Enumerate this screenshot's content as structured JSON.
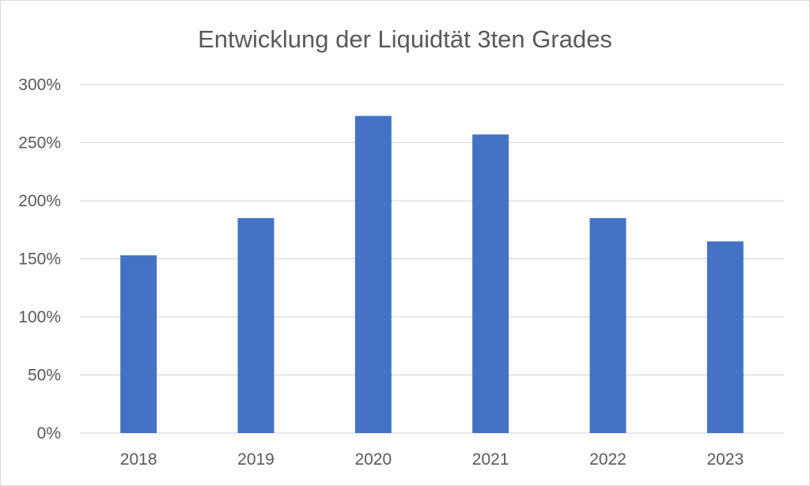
{
  "chart_data": {
    "type": "bar",
    "title": "Entwicklung der Liquidtät 3ten Grades",
    "xlabel": "",
    "ylabel": "",
    "categories": [
      "2018",
      "2019",
      "2020",
      "2021",
      "2022",
      "2023"
    ],
    "values": [
      153,
      185,
      273,
      257,
      185,
      165
    ],
    "value_unit": "%",
    "ylim": [
      0,
      300
    ],
    "yticks": [
      0,
      50,
      100,
      150,
      200,
      250,
      300
    ],
    "ytick_labels": [
      "0%",
      "50%",
      "100%",
      "150%",
      "200%",
      "250%",
      "300%"
    ],
    "grid": true,
    "legend": "none",
    "bar_color": "#4472c4"
  }
}
